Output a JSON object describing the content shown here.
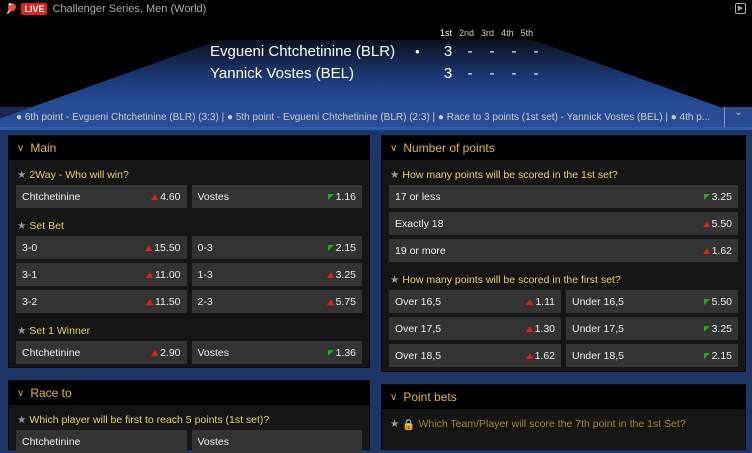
{
  "header": {
    "live_badge": "LIVE",
    "title": "Challenger Series, Men (World)",
    "sets": [
      "1st",
      "2nd",
      "3rd",
      "4th",
      "5th"
    ],
    "players": [
      {
        "name": "Evgueni Chtchetinine (BLR)",
        "serving": true,
        "scores": [
          "3",
          "-",
          "-",
          "-",
          "-"
        ]
      },
      {
        "name": "Yannick Vostes (BEL)",
        "serving": false,
        "scores": [
          "3",
          "-",
          "-",
          "-",
          "-"
        ]
      }
    ],
    "ticker": "● 6th point - Evgueni Chtchetinine (BLR) (3:3)  |  ● 5th point - Evgueni Chtchetinine (BLR) (2:3)  |  ● Race to 3 points (1st set) - Yannick Vostes (BEL)  |  ● 4th p..."
  },
  "colors": {
    "accent": "#e0b83a",
    "up": "#dd2222",
    "down": "#22aa22",
    "live": "#e0231a"
  },
  "panels": [
    {
      "id": "main",
      "title": "Main",
      "groups": [
        {
          "question": "2Way - Who will win?",
          "rows": [
            [
              {
                "label": "Chtchetinine",
                "odds": "4.60",
                "trend": "up"
              },
              {
                "label": "Vostes",
                "odds": "1.16",
                "trend": "down"
              }
            ]
          ]
        },
        {
          "question": "Set Bet",
          "rows": [
            [
              {
                "label": "3-0",
                "odds": "15.50",
                "trend": "up"
              },
              {
                "label": "0-3",
                "odds": "2.15",
                "trend": "down"
              }
            ],
            [
              {
                "label": "3-1",
                "odds": "11.00",
                "trend": "up"
              },
              {
                "label": "1-3",
                "odds": "3.25",
                "trend": "up"
              }
            ],
            [
              {
                "label": "3-2",
                "odds": "11.50",
                "trend": "up"
              },
              {
                "label": "2-3",
                "odds": "5.75",
                "trend": "up"
              }
            ]
          ]
        },
        {
          "question": "Set 1 Winner",
          "rows": [
            [
              {
                "label": "Chtchetinine",
                "odds": "2.90",
                "trend": "up"
              },
              {
                "label": "Vostes",
                "odds": "1.36",
                "trend": "down"
              }
            ]
          ]
        }
      ]
    },
    {
      "id": "points",
      "title": "Number of points",
      "groups": [
        {
          "question": "How many points will be scored in the 1st set?",
          "rows": [
            [
              {
                "label": "17 or less",
                "odds": "3.25",
                "trend": "down"
              }
            ],
            [
              {
                "label": "Exactly 18",
                "odds": "5.50",
                "trend": "up"
              }
            ],
            [
              {
                "label": "19 or more",
                "odds": "1.62",
                "trend": "up"
              }
            ]
          ]
        },
        {
          "question": "How many points will be scored in the first set?",
          "rows": [
            [
              {
                "label": "Over 16,5",
                "odds": "1.11",
                "trend": "up"
              },
              {
                "label": "Under 16,5",
                "odds": "5.50",
                "trend": "down"
              }
            ],
            [
              {
                "label": "Over 17,5",
                "odds": "1.30",
                "trend": "up"
              },
              {
                "label": "Under 17,5",
                "odds": "3.25",
                "trend": "down"
              }
            ],
            [
              {
                "label": "Over 18,5",
                "odds": "1.62",
                "trend": "up"
              },
              {
                "label": "Under 18,5",
                "odds": "2.15",
                "trend": "down"
              }
            ]
          ]
        }
      ]
    },
    {
      "id": "race",
      "title": "Race to",
      "groups": [
        {
          "question": "Which player will be first to reach 5 points (1st set)?",
          "rows": [
            [
              {
                "label": "Chtchetinine",
                "odds": "",
                "trend": ""
              },
              {
                "label": "Vostes",
                "odds": "",
                "trend": ""
              }
            ]
          ]
        }
      ]
    },
    {
      "id": "pointbets",
      "title": "Point bets",
      "groups": [
        {
          "question": "Which Team/Player will score the 7th point in the 1st Set?",
          "locked": true,
          "rows": []
        }
      ]
    }
  ]
}
